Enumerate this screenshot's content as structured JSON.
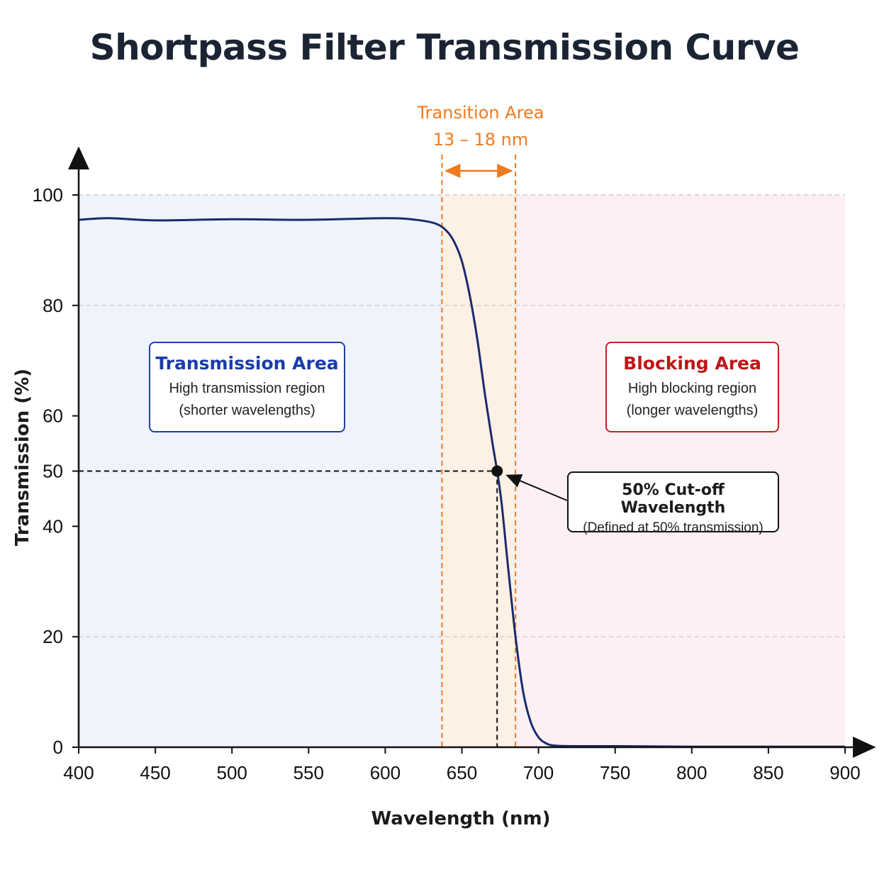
{
  "title": "Shortpass Filter Transmission Curve",
  "chart_data": {
    "type": "line",
    "title": "Shortpass Filter Transmission Curve",
    "xlabel": "Wavelength (nm)",
    "ylabel": "Transmission (%)",
    "xlim": [
      400,
      900
    ],
    "ylim": [
      0,
      100
    ],
    "x_ticks": [
      400,
      450,
      500,
      550,
      600,
      650,
      700,
      750,
      800,
      850,
      900
    ],
    "y_ticks": [
      0,
      20,
      40,
      50,
      60,
      80,
      100
    ],
    "grid_y": [
      20,
      80,
      100
    ],
    "series": [
      {
        "color": "#1a2a6c",
        "x": [
          400,
          420,
          450,
          500,
          550,
          600,
          620,
          633,
          640,
          645,
          650,
          655,
          660,
          665,
          670,
          673,
          676,
          680,
          685,
          690,
          695,
          700,
          705,
          710,
          720,
          750,
          800,
          850,
          900
        ],
        "y": [
          95.5,
          95.8,
          95.4,
          95.6,
          95.5,
          95.8,
          95.5,
          94.8,
          93.5,
          91.5,
          88.0,
          82.0,
          74.0,
          64.0,
          55.0,
          50.0,
          44.0,
          33.0,
          20.0,
          10.0,
          4.5,
          1.8,
          0.7,
          0.3,
          0.2,
          0.2,
          0.1,
          0.1,
          0.1
        ]
      }
    ],
    "regions": {
      "transmission": {
        "x": [
          400,
          637
        ],
        "color": "#eef3fc"
      },
      "transition": {
        "x": [
          637,
          685
        ],
        "color": "#fdf0e4"
      },
      "blocking": {
        "x": [
          685,
          900
        ],
        "color": "#fcf0f3"
      }
    },
    "transition_area": {
      "line1": "Transition Area",
      "line2": "13 – 18 nm",
      "x_start": 637,
      "x_end": 685,
      "color": "#f07a1e"
    },
    "cutoff_point": {
      "x": 673,
      "y": 50
    },
    "annotations": {
      "transmission_box": {
        "heading": "Transmission Area",
        "line1": "High transmission region",
        "line2": "(shorter wavelengths)"
      },
      "blocking_box": {
        "heading": "Blocking Area",
        "line1": "High blocking region",
        "line2": "(longer wavelengths)"
      },
      "cutoff_box": {
        "heading": "50% Cut-off Wavelength",
        "line1": "(Defined at 50% transmission)"
      }
    }
  }
}
